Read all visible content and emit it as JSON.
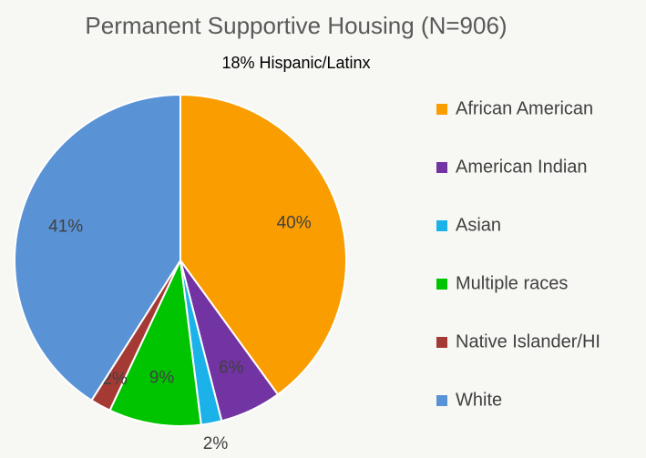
{
  "chart_data": {
    "type": "pie",
    "title": "Permanent Supportive Housing (N=906)",
    "subtitle": "18% Hispanic/Latinx",
    "categories": [
      "African American",
      "American Indian",
      "Asian",
      "Multiple races",
      "Native Islander/HI",
      "White"
    ],
    "values": [
      40,
      6,
      2,
      9,
      2,
      41
    ],
    "value_labels": [
      "40%",
      "6%",
      "2%",
      "9%",
      "2%",
      "41%"
    ],
    "colors": [
      "#f99d00",
      "#7233a3",
      "#1bb2ea",
      "#00c400",
      "#a53a35",
      "#5a92d6"
    ],
    "legend": "right"
  }
}
